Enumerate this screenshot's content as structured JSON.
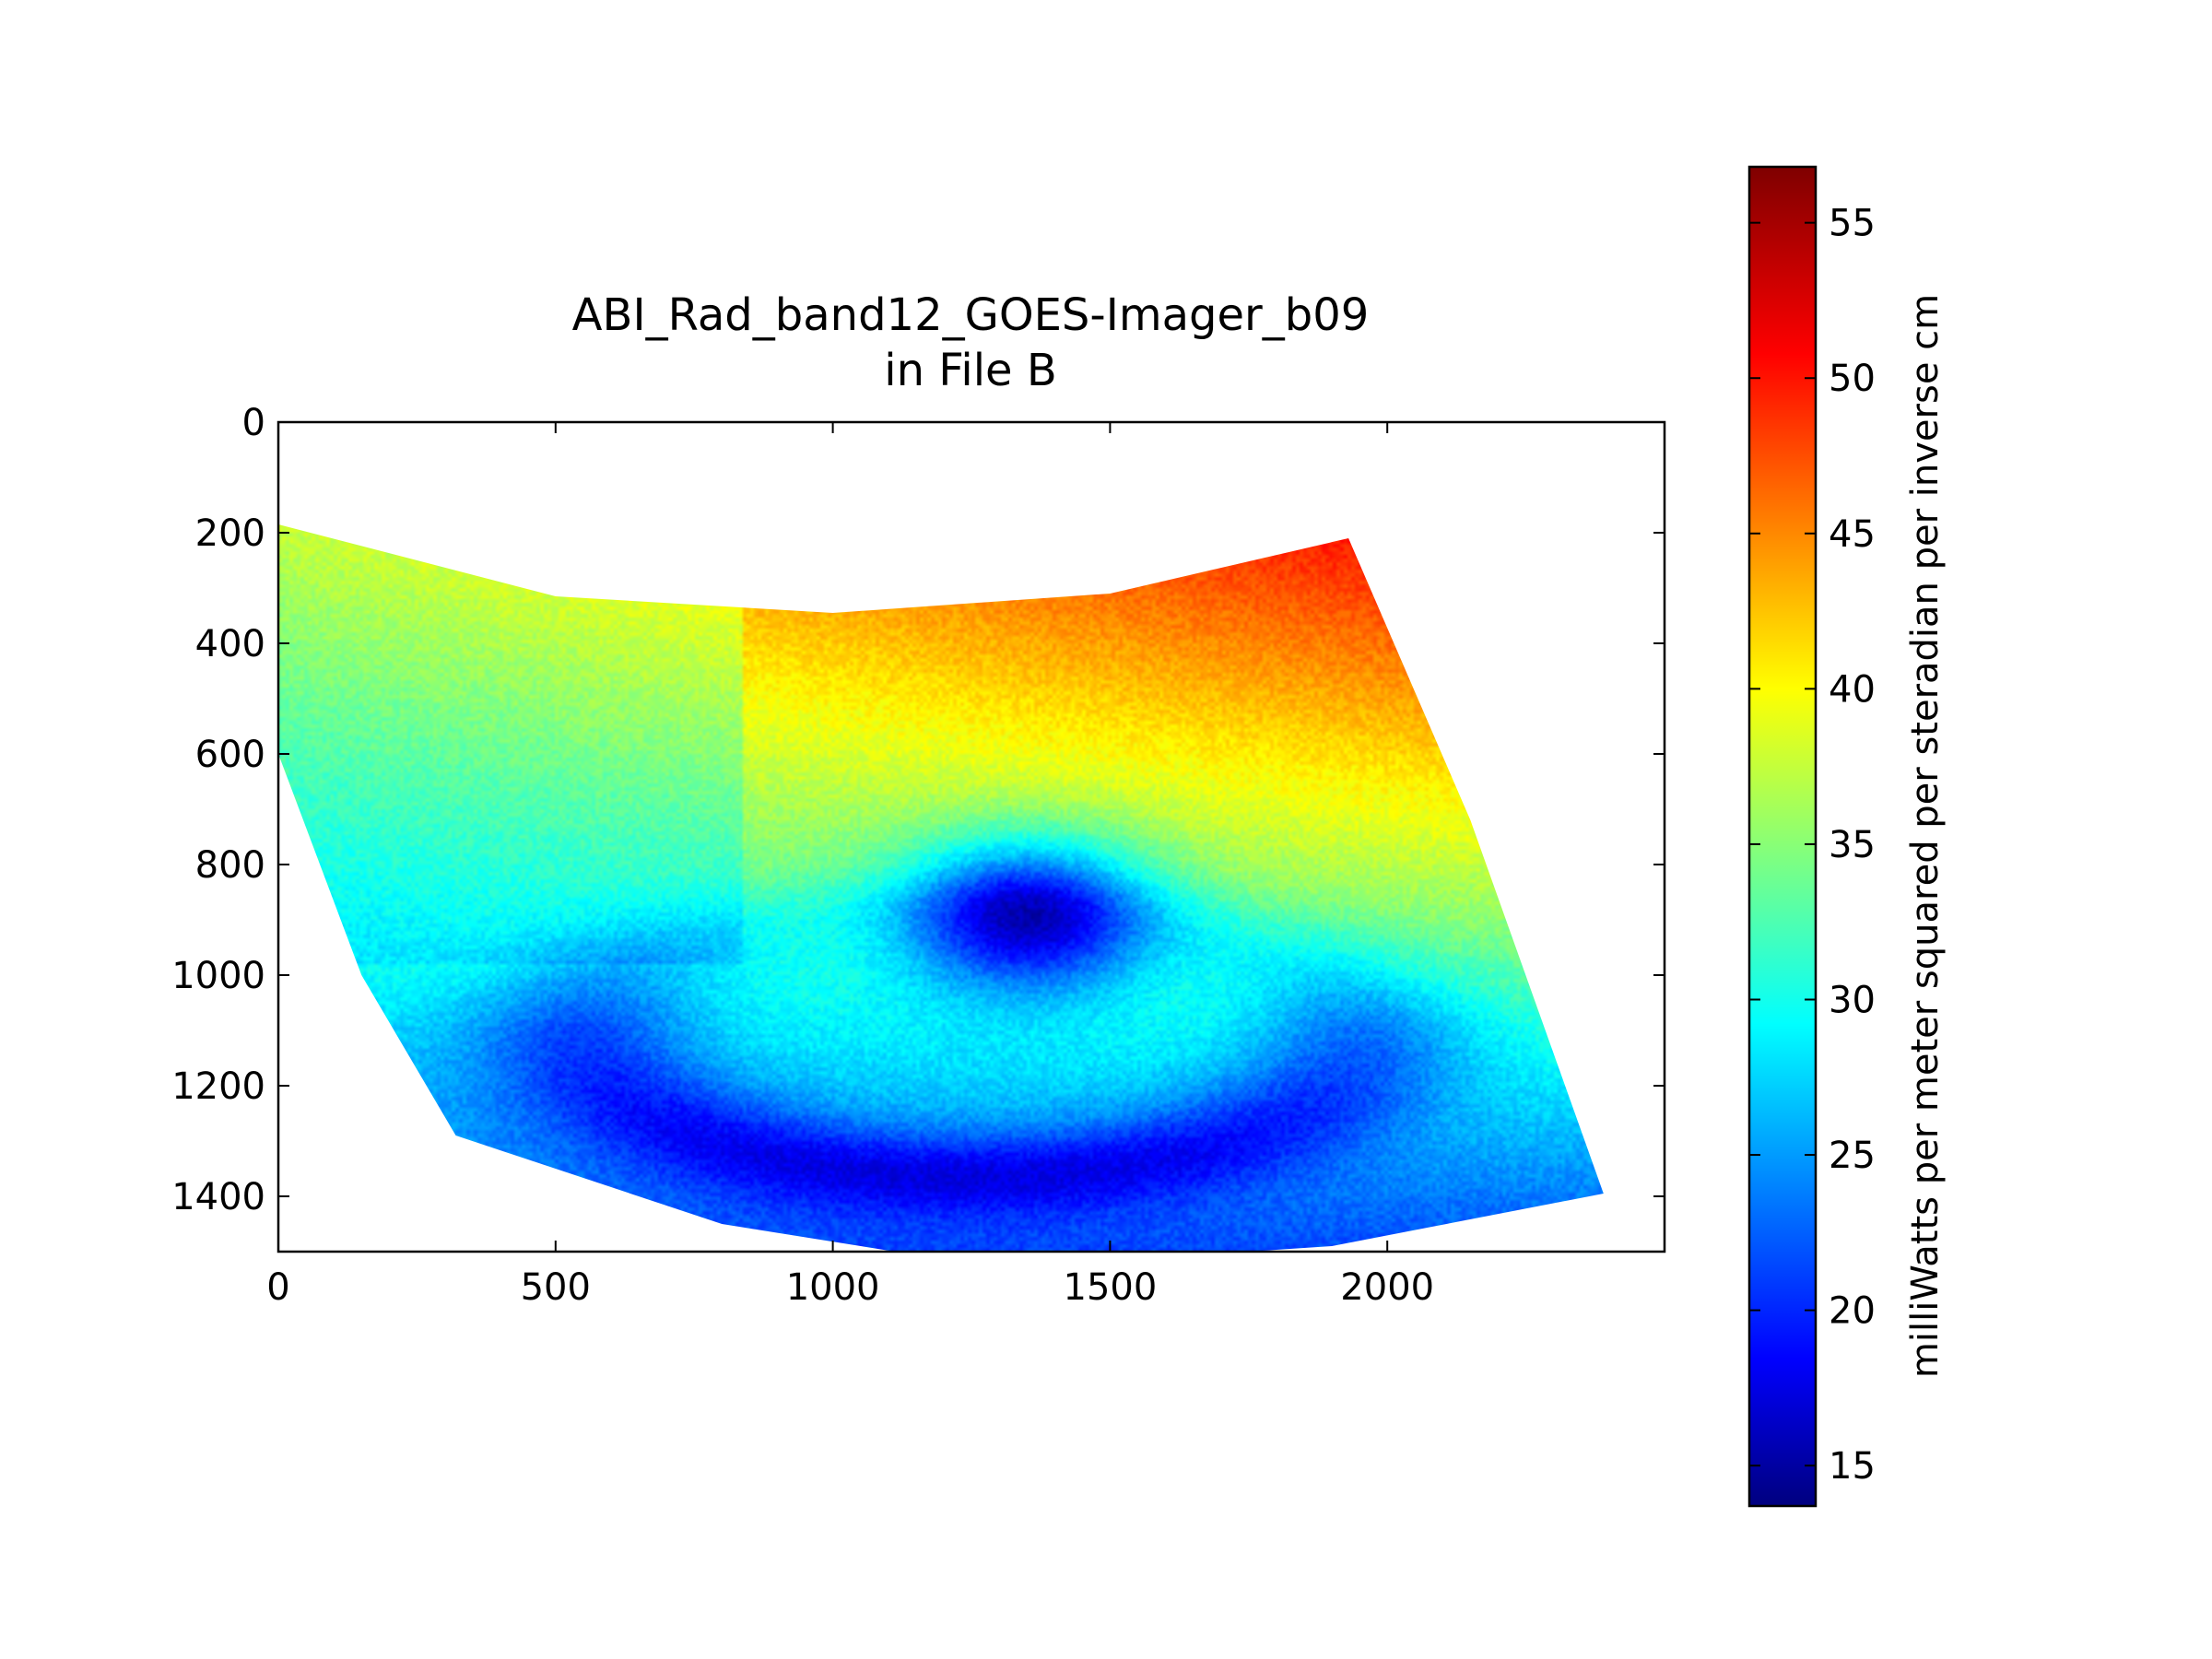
{
  "chart_data": {
    "type": "heatmap",
    "title": "ABI_Rad_band12_GOES-Imager_b09",
    "subtitle": "in File B",
    "xlabel": "",
    "ylabel": "",
    "x_ticks": [
      0,
      500,
      1000,
      1500,
      2000
    ],
    "y_ticks": [
      0,
      200,
      400,
      600,
      800,
      1000,
      1200,
      1400
    ],
    "xlim": [
      0,
      2500
    ],
    "ylim": [
      1500,
      0
    ],
    "y_axis_inverted": true,
    "grid": false,
    "colormap": "jet",
    "colorbar": {
      "label": "milliWatts per meter squared per steradian per inverse cm",
      "range": [
        13.7,
        56.8
      ],
      "ticks": [
        15,
        20,
        25,
        30,
        35,
        40,
        45,
        50,
        55
      ]
    },
    "image_region": {
      "description_points_data_units": {
        "top_edge": [
          [
            0,
            185
          ],
          [
            500,
            315
          ],
          [
            1000,
            345
          ],
          [
            1500,
            310
          ],
          [
            1930,
            210
          ]
        ],
        "right_edge": [
          [
            1930,
            210
          ],
          [
            2150,
            720
          ],
          [
            2390,
            1395
          ]
        ],
        "bottom_edge": [
          [
            2390,
            1395
          ],
          [
            1900,
            1490
          ],
          [
            1300,
            1530
          ],
          [
            800,
            1450
          ],
          [
            320,
            1290
          ]
        ],
        "left_edge": [
          [
            320,
            1290
          ],
          [
            150,
            1000
          ],
          [
            0,
            600
          ]
        ]
      }
    },
    "value_field": {
      "north_east_values": 53,
      "north_west_values": 42,
      "central_values": 38,
      "southern_values": 22,
      "storm_core_center": [
        1350,
        900
      ],
      "storm_core_value": 17
    }
  },
  "colors": {
    "background": "#ffffff",
    "axes": "#000000"
  }
}
